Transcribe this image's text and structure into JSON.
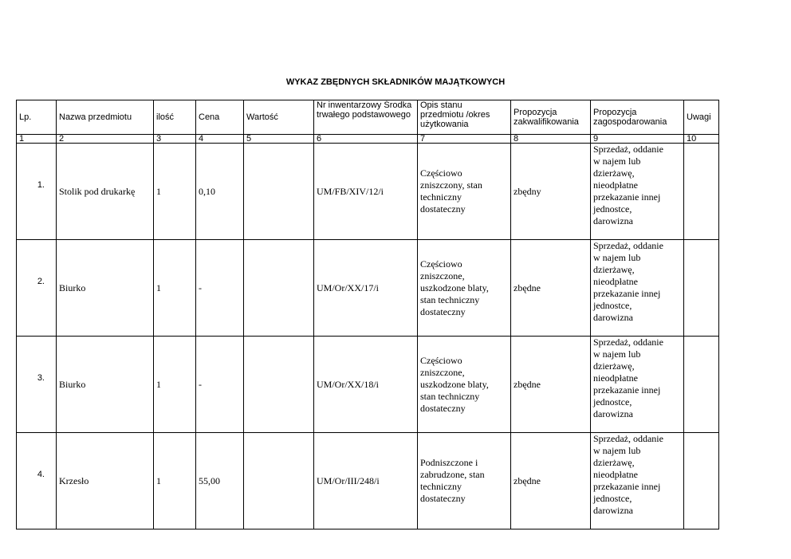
{
  "title": "WYKAZ  ZBĘDNYCH SKŁADNIKÓW MAJĄTKOWYCH",
  "headers": [
    "Lp.",
    "Nazwa przedmiotu",
    "ilość",
    "Cena",
    "Wartość",
    "Nr inwentarzowy Środka trwałego podstawowego",
    "Opis stanu przedmiotu /okres użytkowania",
    "Propozycja zakwalifikowania",
    "Propozycja zagospodarowania",
    "Uwagi"
  ],
  "numbers": [
    "1",
    "2",
    "3",
    "4",
    "5",
    "6",
    "7",
    "8",
    "9",
    "10"
  ],
  "rows": [
    {
      "lp": "1.",
      "name": "Stolik pod drukarkę",
      "qty": "1",
      "price": "0,10",
      "value": "",
      "inv": "UM/FB/XIV/12/i",
      "desc": "Częściowo\nzniszczony, stan\ntechniczny\ndostateczny",
      "qual": "zbędny",
      "plan": "Sprzedaż, oddanie\nw najem lub\ndzierżawę,\nnieodpłatne\nprzekazanie innej\njednostce,\ndarowizna",
      "notes": ""
    },
    {
      "lp": "2.",
      "name": "Biurko",
      "qty": "1",
      "price": "-",
      "value": "",
      "inv": "UM/Or/XX/17/i",
      "desc": "Częściowo\nzniszczone,\nuszkodzone blaty,\nstan techniczny\ndostateczny",
      "qual": "zbędne",
      "plan": "Sprzedaż, oddanie\nw najem lub\ndzierżawę,\nnieodpłatne\nprzekazanie innej\njednostce,\ndarowizna",
      "notes": ""
    },
    {
      "lp": "3.",
      "name": "Biurko",
      "qty": "1",
      "price": "-",
      "value": "",
      "inv": "UM/Or/XX/18/i",
      "desc": "Częściowo\nzniszczone,\nuszkodzone blaty,\nstan techniczny\ndostateczny",
      "qual": "zbędne",
      "plan": "Sprzedaż, oddanie\nw najem lub\ndzierżawę,\nnieodpłatne\nprzekazanie innej\njednostce,\ndarowizna",
      "notes": ""
    },
    {
      "lp": "4.",
      "name": "Krzesło",
      "qty": "1",
      "price": "55,00",
      "value": "",
      "inv": "UM/Or/III/248/i",
      "desc": "Podniszczone i\nzabrudzone, stan\ntechniczny\ndostateczny",
      "qual": "zbędne",
      "plan": "Sprzedaż, oddanie\nw najem lub\ndzierżawę,\nnieodpłatne\nprzekazanie innej\njednostce,\ndarowizna",
      "notes": ""
    }
  ]
}
